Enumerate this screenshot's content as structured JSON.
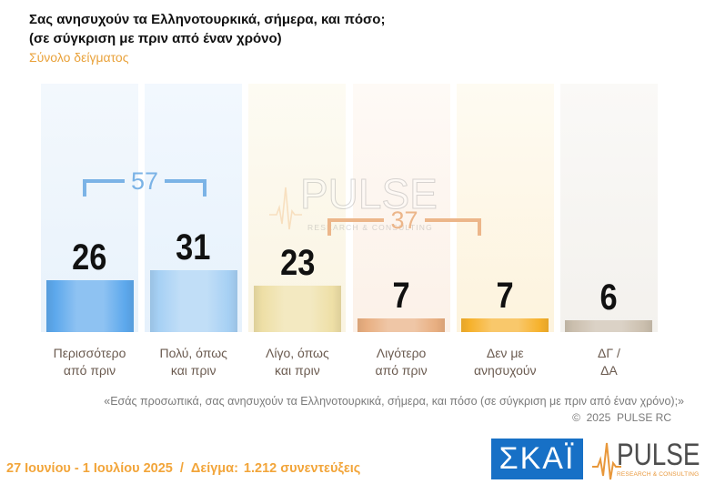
{
  "chart_data": {
    "type": "bar",
    "title_lines": [
      "Σας ανησυχούν τα Ελληνοτουρκικά, σήμερα, και πόσο;",
      "(σε σύγκριση με πριν από έναν χρόνο)"
    ],
    "subtitle": "Σύνολο δείγματος",
    "categories": [
      "Περισσότερο\nαπό πριν",
      "Πολύ, όπως\nκαι πριν",
      "Λίγο, όπως\nκαι πριν",
      "Λιγότερο\nαπό πριν",
      "Δεν με\nανησυχούν",
      "ΔΓ /\nΔΑ"
    ],
    "values": [
      26,
      31,
      23,
      7,
      7,
      6
    ],
    "colors": [
      "#5DA8EC",
      "#A6D0F4",
      "#EEDFA6",
      "#E8AE80",
      "#F6B12C",
      "#CBBFAE"
    ],
    "groups": [
      {
        "total": 57,
        "color": "#7BB3E6"
      },
      {
        "total": 37,
        "color": "#ECB68A"
      }
    ],
    "grid": false,
    "legend": "none"
  },
  "footer": {
    "question": "«Εσάς προσωπικά, σας ανησυχούν τα Ελληνοτουρκικά, σήμερα, και πόσο (σε σύγκριση με πριν από έναν χρόνο);»",
    "copyright": "©  2025  PULSE RC",
    "date": "27 Ιουνίου - 1 Ιουλίου 2025",
    "separator": "/",
    "sample_label": "Δείγμα:",
    "sample_value": "1.212 συνεντεύξεις"
  },
  "logos": {
    "skai": {
      "text": "ΣΚΑΪ",
      "color": "#1770C6"
    },
    "pulse": {
      "name": "PULSE",
      "tagline": "RESEARCH & CONSULTING",
      "accent": "#E8973A"
    }
  }
}
